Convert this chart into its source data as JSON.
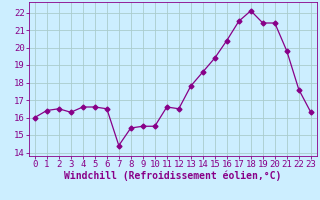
{
  "x": [
    0,
    1,
    2,
    3,
    4,
    5,
    6,
    7,
    8,
    9,
    10,
    11,
    12,
    13,
    14,
    15,
    16,
    17,
    18,
    19,
    20,
    21,
    22,
    23
  ],
  "y": [
    16.0,
    16.4,
    16.5,
    16.3,
    16.6,
    16.6,
    16.5,
    14.4,
    15.4,
    15.5,
    15.5,
    16.6,
    16.5,
    17.8,
    18.6,
    19.4,
    20.4,
    21.5,
    22.1,
    21.4,
    21.4,
    19.8,
    17.6,
    16.3
  ],
  "line_color": "#880088",
  "marker": "D",
  "marker_size": 2.5,
  "background_color": "#cceeff",
  "grid_color": "#aacccc",
  "xlabel": "Windchill (Refroidissement éolien,°C)",
  "xlabel_color": "#880088",
  "tick_color": "#880088",
  "ylim": [
    13.8,
    22.6
  ],
  "yticks": [
    14,
    15,
    16,
    17,
    18,
    19,
    20,
    21,
    22
  ],
  "xlim": [
    -0.5,
    23.5
  ],
  "xticks": [
    0,
    1,
    2,
    3,
    4,
    5,
    6,
    7,
    8,
    9,
    10,
    11,
    12,
    13,
    14,
    15,
    16,
    17,
    18,
    19,
    20,
    21,
    22,
    23
  ],
  "xlabel_fontsize": 7,
  "tick_fontsize": 6.5
}
